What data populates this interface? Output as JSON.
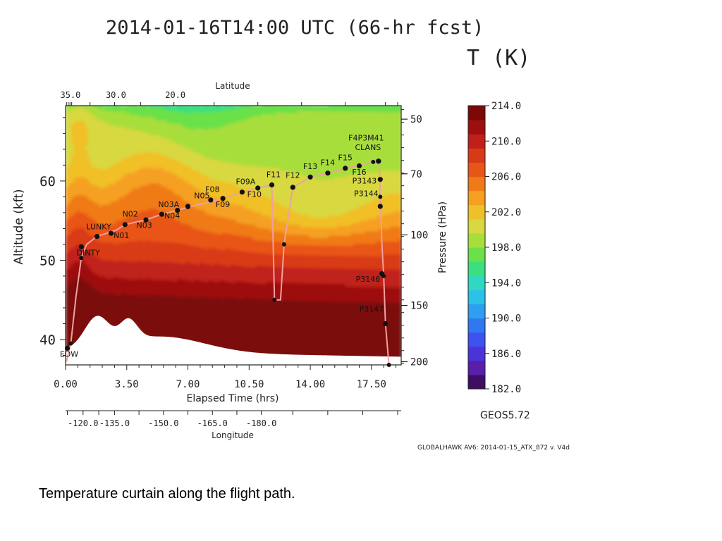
{
  "chart_data": {
    "type": "heatmap",
    "title": "2014-01-16T14:00 UTC (66-hr fcst)",
    "variable_label": "T (K)",
    "xlabel": "Elapsed Time (hrs)",
    "xlim": [
      0,
      19.2
    ],
    "x_ticks": [
      "0.00",
      "3.50",
      "7.00",
      "10.50",
      "14.00",
      "17.50"
    ],
    "x_tick_values": [
      0,
      3.5,
      7,
      10.5,
      14,
      17.5
    ],
    "ylabel_left": "Altitude (kft)",
    "ylim": [
      36.8,
      69.5
    ],
    "y_ticks": [
      "40",
      "50",
      "60"
    ],
    "y_tick_values": [
      40,
      50,
      60
    ],
    "ylabel_right": "Pressure (HPa)",
    "pressure_ticks": [
      "50",
      "70",
      "100",
      "150",
      "200"
    ],
    "pressure_tick_altitudes": [
      67.8,
      60.9,
      53.2,
      44.3,
      37.2
    ],
    "top_axis_label": "Latitude",
    "latitude_ticks": [
      "35.0",
      "30.0",
      "20.0"
    ],
    "latitude_tick_times": [
      0.2,
      2.8,
      6.2
    ],
    "bottom_axis2_label": "Longitude",
    "longitude_ticks": [
      "-120.0",
      "-135.0",
      "-150.0",
      "-165.0",
      "-180.0"
    ],
    "longitude_tick_times": [
      1.0,
      2.8,
      5.6,
      8.4,
      11.2
    ],
    "colorbar": {
      "min": 182,
      "max": 214,
      "tick_labels": [
        "214.0",
        "210.0",
        "206.0",
        "202.0",
        "198.0",
        "194.0",
        "190.0",
        "186.0",
        "182.0"
      ],
      "tick_values": [
        214,
        210,
        206,
        202,
        198,
        194,
        190,
        186,
        182
      ],
      "colors": [
        "#3d0e63",
        "#5a1fa8",
        "#4a34d8",
        "#3d52f0",
        "#2f78f2",
        "#2e9ff0",
        "#2cc2e8",
        "#2fd8c0",
        "#3ae080",
        "#6ae04a",
        "#a8de3a",
        "#d8d840",
        "#f0c028",
        "#f5a020",
        "#f07a18",
        "#e85518",
        "#d83a18",
        "#c0201a",
        "#9e1010",
        "#7c0808"
      ]
    },
    "model_label": "GEOS5.72",
    "footer_note": "GLOBALHAWK AV6: 2014-01-15_ATX_872 v. V4d",
    "flight_path": [
      {
        "t": 0.05,
        "alt": 37.2
      },
      {
        "t": 0.3,
        "alt": 39.5
      },
      {
        "t": 0.6,
        "alt": 45.5
      },
      {
        "t": 0.9,
        "alt": 50.3
      },
      {
        "t": 1.2,
        "alt": 52.0
      },
      {
        "t": 1.8,
        "alt": 53.0
      },
      {
        "t": 2.9,
        "alt": 53.8
      },
      {
        "t": 3.4,
        "alt": 54.5
      },
      {
        "t": 4.6,
        "alt": 55.1
      },
      {
        "t": 5.5,
        "alt": 55.8
      },
      {
        "t": 6.4,
        "alt": 56.3
      },
      {
        "t": 7.0,
        "alt": 56.7
      },
      {
        "t": 8.0,
        "alt": 57.2
      },
      {
        "t": 9.0,
        "alt": 57.8
      },
      {
        "t": 10.0,
        "alt": 58.5
      },
      {
        "t": 11.0,
        "alt": 59.1
      },
      {
        "t": 11.8,
        "alt": 59.5
      },
      {
        "t": 11.95,
        "alt": 45.0
      },
      {
        "t": 12.3,
        "alt": 45.0
      },
      {
        "t": 12.5,
        "alt": 52.0
      },
      {
        "t": 13.0,
        "alt": 59.2
      },
      {
        "t": 14.0,
        "alt": 60.5
      },
      {
        "t": 15.0,
        "alt": 61.0
      },
      {
        "t": 16.0,
        "alt": 61.6
      },
      {
        "t": 17.0,
        "alt": 62.1
      },
      {
        "t": 17.6,
        "alt": 62.4
      },
      {
        "t": 17.95,
        "alt": 62.5
      },
      {
        "t": 18.0,
        "alt": 58.0
      },
      {
        "t": 18.1,
        "alt": 52.0
      },
      {
        "t": 18.2,
        "alt": 48.0
      },
      {
        "t": 18.3,
        "alt": 42.0
      },
      {
        "t": 18.5,
        "alt": 36.8
      }
    ],
    "waypoints": [
      {
        "label": "EDW",
        "t": 0.1,
        "alt": 38.9,
        "label_dt": 0.1,
        "label_dalt": -1.1
      },
      {
        "label": "DINTY",
        "t": 0.9,
        "alt": 51.7,
        "label_dt": 0.4,
        "label_dalt": -1.1
      },
      {
        "label": "LUNKY",
        "t": 1.8,
        "alt": 53.0,
        "label_dt": 0.1,
        "label_dalt": 0.9
      },
      {
        "label": "N01",
        "t": 2.6,
        "alt": 53.4,
        "label_dt": 0.6,
        "label_dalt": -0.6
      },
      {
        "label": "N02",
        "t": 3.4,
        "alt": 54.5,
        "label_dt": 0.3,
        "label_dalt": 1.0
      },
      {
        "label": "N03",
        "t": 4.6,
        "alt": 55.1,
        "label_dt": -0.1,
        "label_dalt": -1.0
      },
      {
        "label": "N03A",
        "t": 5.5,
        "alt": 55.8,
        "label_dt": 0.4,
        "label_dalt": 0.9
      },
      {
        "label": "N04",
        "t": 6.4,
        "alt": 56.3,
        "label_dt": -0.3,
        "label_dalt": -1.0
      },
      {
        "label": "N05",
        "t": 7.0,
        "alt": 56.8,
        "label_dt": 0.8,
        "label_dalt": 1.0
      },
      {
        "label": "F08",
        "t": 8.3,
        "alt": 57.6,
        "label_dt": 0.1,
        "label_dalt": 1.0
      },
      {
        "label": "F09",
        "t": 9.0,
        "alt": 57.8,
        "label_dt": 0.0,
        "label_dalt": -1.1
      },
      {
        "label": "F09A",
        "t": 10.1,
        "alt": 58.6,
        "label_dt": 0.2,
        "label_dalt": 1.0
      },
      {
        "label": "F10",
        "t": 11.0,
        "alt": 59.1,
        "label_dt": -0.2,
        "label_dalt": -1.1
      },
      {
        "label": "F11",
        "t": 11.8,
        "alt": 59.5,
        "label_dt": 0.1,
        "label_dalt": 1.0
      },
      {
        "label": "F12",
        "t": 13.0,
        "alt": 59.2,
        "label_dt": 0.0,
        "label_dalt": 1.2
      },
      {
        "label": "F13",
        "t": 14.0,
        "alt": 60.5,
        "label_dt": 0.0,
        "label_dalt": 1.0
      },
      {
        "label": "F14",
        "t": 15.0,
        "alt": 61.0,
        "label_dt": 0.0,
        "label_dalt": 1.0
      },
      {
        "label": "F15",
        "t": 16.0,
        "alt": 61.6,
        "label_dt": 0.0,
        "label_dalt": 1.0
      },
      {
        "label": "F16",
        "t": 16.8,
        "alt": 61.9,
        "label_dt": 0.0,
        "label_dalt": -1.1
      },
      {
        "label": "F4P3M41",
        "t": 17.9,
        "alt": 62.5,
        "label_dt": -0.7,
        "label_dalt": 2.6
      },
      {
        "label": "CLANS",
        "t": 17.9,
        "alt": 62.5,
        "label_dt": -0.6,
        "label_dalt": 1.4
      },
      {
        "label": "P3143",
        "t": 18.0,
        "alt": 60.2,
        "label_dt": -0.9,
        "label_dalt": -0.5
      },
      {
        "label": "P3144",
        "t": 18.0,
        "alt": 56.8,
        "label_dt": -0.8,
        "label_dalt": 1.3
      },
      {
        "label": "P3146",
        "t": 18.1,
        "alt": 48.3,
        "label_dt": -0.8,
        "label_dalt": -1.0
      },
      {
        "label": "P3147",
        "t": 18.3,
        "alt": 42.0,
        "label_dt": -0.8,
        "label_dalt": 1.5
      }
    ]
  },
  "caption": "Temperature curtain along the flight path."
}
